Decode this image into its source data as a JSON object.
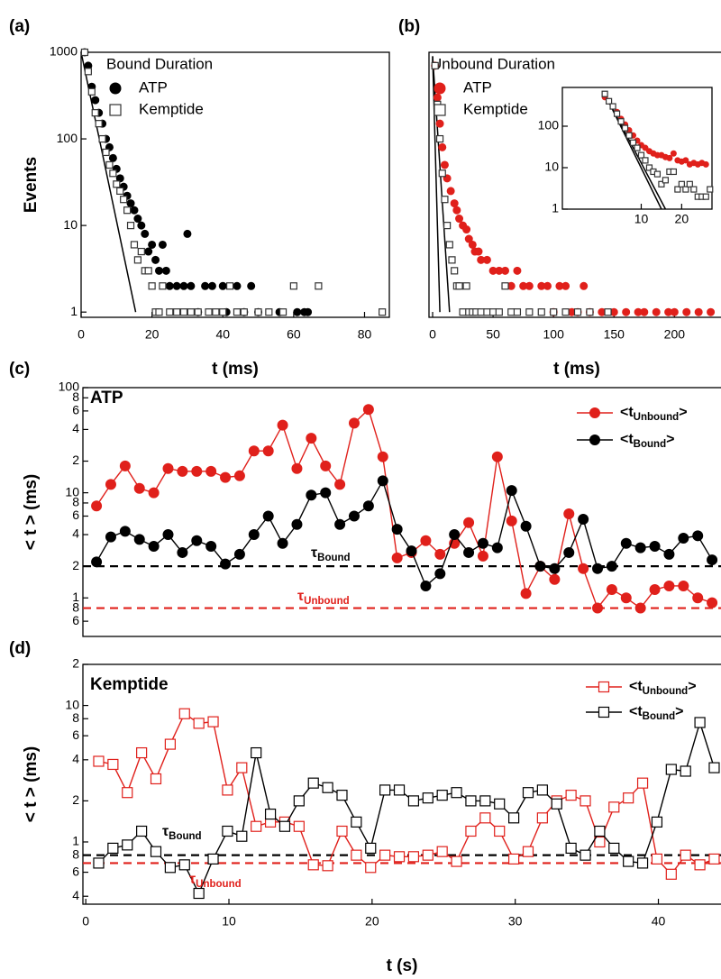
{
  "chart_data": [
    {
      "type": "scatter",
      "panel_label": "(a)",
      "x_label": "t (ms)",
      "y_label": "Events",
      "legend_title": "Bound Duration",
      "log_y": true,
      "xlim": [
        0,
        87
      ],
      "ylim": [
        0.87,
        1000
      ],
      "xticks": [
        0,
        20,
        40,
        60,
        80
      ],
      "yticks": [
        1,
        10,
        100,
        1000
      ],
      "fit_lines": [
        {
          "x": [
            0,
            15.4
          ],
          "y": [
            1000,
            1
          ]
        }
      ],
      "series": [
        {
          "name": "ATP",
          "color": "#000000",
          "marker": "circle",
          "filled": true,
          "x": [
            1,
            2,
            3,
            4,
            5,
            6,
            7,
            8,
            9,
            10,
            11,
            12,
            13,
            14,
            15,
            16,
            17,
            18,
            19,
            20,
            21,
            22,
            23,
            24,
            25,
            27,
            29,
            30,
            31,
            33,
            35,
            37,
            40,
            41,
            44,
            46,
            48,
            50,
            56,
            61,
            63,
            64
          ],
          "values": [
            1000,
            700,
            400,
            280,
            200,
            150,
            100,
            80,
            60,
            45,
            35,
            28,
            22,
            18,
            15,
            12,
            10,
            8,
            5,
            6,
            4,
            3,
            6,
            3,
            2,
            2,
            2,
            8,
            2,
            1,
            2,
            2,
            2,
            1,
            2,
            1,
            2,
            1,
            1,
            1,
            1,
            1
          ]
        },
        {
          "name": "Kemptide",
          "color": "#333333",
          "marker": "square",
          "filled": false,
          "x": [
            1,
            2,
            3,
            4,
            5,
            6,
            7,
            8,
            9,
            10,
            11,
            12,
            13,
            14,
            15,
            16,
            17,
            18,
            19,
            20,
            21,
            22,
            23,
            25,
            27,
            29,
            31,
            33,
            36,
            38,
            40,
            42,
            44,
            46,
            50,
            53,
            57,
            60,
            67,
            85
          ],
          "values": [
            1000,
            600,
            350,
            200,
            150,
            100,
            70,
            50,
            40,
            30,
            25,
            20,
            15,
            10,
            6,
            4,
            5,
            3,
            3,
            2,
            1,
            1,
            2,
            1,
            1,
            1,
            1,
            1,
            1,
            1,
            1,
            2,
            1,
            1,
            1,
            1,
            1,
            2,
            2,
            1
          ]
        }
      ]
    },
    {
      "type": "scatter",
      "panel_label": "(b)",
      "x_label": "t (ms)",
      "legend_title": "Unbound Duration",
      "log_y": true,
      "xlim": [
        -3,
        240
      ],
      "ylim": [
        0.87,
        1000
      ],
      "xticks": [
        0,
        50,
        100,
        150,
        200
      ],
      "fit_lines": [
        {
          "x": [
            0,
            6
          ],
          "y": [
            900,
            1
          ]
        },
        {
          "x": [
            0,
            14
          ],
          "y": [
            900,
            1
          ]
        }
      ],
      "series": [
        {
          "name": "ATP",
          "color": "#e0201b",
          "marker": "circle",
          "filled": true,
          "x": [
            2,
            4,
            6,
            8,
            10,
            12,
            15,
            18,
            20,
            22,
            25,
            28,
            30,
            33,
            35,
            38,
            40,
            45,
            50,
            55,
            60,
            65,
            70,
            75,
            80,
            90,
            95,
            100,
            105,
            110,
            115,
            120,
            125,
            130,
            140,
            150,
            160,
            170,
            175,
            185,
            195,
            200,
            210,
            220,
            230
          ],
          "values": [
            700,
            300,
            150,
            80,
            50,
            35,
            25,
            18,
            15,
            12,
            10,
            9,
            7,
            6,
            5,
            5,
            4,
            4,
            3,
            3,
            3,
            2,
            3,
            2,
            2,
            2,
            2,
            1,
            2,
            2,
            1,
            1,
            2,
            1,
            1,
            1,
            1,
            1,
            1,
            1,
            1,
            1,
            1,
            1,
            1
          ]
        },
        {
          "name": "Kemptide",
          "color": "#333333",
          "marker": "square",
          "filled": false,
          "x": [
            2,
            4,
            6,
            8,
            10,
            12,
            14,
            16,
            18,
            20,
            22,
            25,
            28,
            30,
            33,
            36,
            40,
            45,
            50,
            55,
            60,
            65,
            70,
            80,
            90,
            100,
            110,
            120,
            130,
            145
          ],
          "values": [
            700,
            250,
            100,
            40,
            20,
            10,
            6,
            4,
            3,
            2,
            2,
            1,
            2,
            1,
            1,
            1,
            1,
            1,
            1,
            1,
            2,
            1,
            1,
            1,
            1,
            1,
            1,
            1,
            1,
            1
          ]
        }
      ]
    },
    {
      "type": "scatter",
      "log_y": true,
      "xlim": [
        -9.5,
        27.5
      ],
      "ylim": [
        1,
        860
      ],
      "xticks": [
        10,
        20
      ],
      "yticks": [
        1,
        10,
        100
      ],
      "fit_lines": [
        {
          "x": [
            1,
            15
          ],
          "y": [
            600,
            1
          ]
        },
        {
          "x": [
            1,
            16
          ],
          "y": [
            600,
            1
          ]
        }
      ],
      "series": [
        {
          "color": "#e0201b",
          "marker": "circle",
          "filled": true,
          "x": [
            1,
            2,
            3,
            4,
            5,
            6,
            7,
            8,
            9,
            10,
            11,
            12,
            13,
            14,
            15,
            16,
            17,
            18,
            19,
            20,
            21,
            22,
            23,
            24,
            25,
            26
          ],
          "values": [
            500,
            400,
            300,
            220,
            150,
            110,
            80,
            60,
            45,
            35,
            30,
            25,
            22,
            20,
            20,
            18,
            17,
            22,
            15,
            14,
            15,
            12,
            13,
            12,
            13,
            12
          ]
        },
        {
          "color": "#333333",
          "marker": "square",
          "filled": false,
          "x": [
            1,
            2,
            3,
            4,
            5,
            6,
            7,
            8,
            9,
            10,
            11,
            12,
            13,
            14,
            15,
            16,
            17,
            18,
            19,
            20,
            21,
            22,
            23,
            24,
            25,
            26,
            27
          ],
          "values": [
            600,
            400,
            300,
            200,
            130,
            90,
            60,
            40,
            30,
            20,
            15,
            10,
            8,
            7,
            4,
            5,
            8,
            8,
            3,
            4,
            3,
            4,
            3,
            2,
            2,
            2,
            3
          ]
        }
      ]
    },
    {
      "type": "line",
      "panel_label": "(c)",
      "annotation": "ATP",
      "y_label": "< t > (ms)",
      "log_y": true,
      "xlim": [
        -0.2,
        44.5
      ],
      "ylim": [
        0.43,
        100
      ],
      "yticks": [
        100,
        {
          "value": 80,
          "label": "8"
        },
        {
          "value": 60,
          "label": "6"
        },
        {
          "value": 40,
          "label": "4"
        },
        {
          "value": 20,
          "label": "2"
        },
        10,
        8,
        6,
        4,
        2,
        1,
        {
          "value": 0.8,
          "label": "8"
        },
        {
          "value": 0.6,
          "label": "6"
        }
      ],
      "hlines": [
        {
          "value": 2,
          "label": "τBound",
          "color": "#000000"
        },
        {
          "value": 0.8,
          "label": "τUnbound",
          "color": "#e0201b"
        }
      ],
      "series": [
        {
          "name": "<tUnbound>",
          "color": "#e0201b",
          "marker": "circle",
          "filled": true,
          "x": [
            0.75,
            1.75,
            2.75,
            3.75,
            4.75,
            5.75,
            6.75,
            7.75,
            8.75,
            9.75,
            10.75,
            11.75,
            12.75,
            13.75,
            14.75,
            15.75,
            16.75,
            17.75,
            18.75,
            19.75,
            20.75,
            21.75,
            22.75,
            23.75,
            24.75,
            25.75,
            26.75,
            27.75,
            28.75,
            29.75,
            30.75,
            31.75,
            32.75,
            33.75,
            34.75,
            35.75,
            36.75,
            37.75,
            38.75,
            39.75,
            40.75,
            41.75,
            42.75,
            43.75
          ],
          "values": [
            7.5,
            12,
            18,
            11,
            10,
            17,
            16,
            16,
            16,
            14,
            14.5,
            25,
            25,
            44,
            17,
            33,
            18,
            12,
            46,
            62,
            22,
            2.4,
            2.7,
            3.5,
            2.6,
            3.3,
            5.2,
            2.5,
            22,
            5.4,
            1.1,
            2,
            1.5,
            6.3,
            1.9,
            0.8,
            1.2,
            1,
            0.8,
            1.2,
            1.3,
            1.3,
            1,
            0.9
          ]
        },
        {
          "name": "<tBound>",
          "color": "#000000",
          "marker": "circle",
          "filled": true,
          "x": [
            0.75,
            1.75,
            2.75,
            3.75,
            4.75,
            5.75,
            6.75,
            7.75,
            8.75,
            9.75,
            10.75,
            11.75,
            12.75,
            13.75,
            14.75,
            15.75,
            16.75,
            17.75,
            18.75,
            19.75,
            20.75,
            21.75,
            22.75,
            23.75,
            24.75,
            25.75,
            26.75,
            27.75,
            28.75,
            29.75,
            30.75,
            31.75,
            32.75,
            33.75,
            34.75,
            35.75,
            36.75,
            37.75,
            38.75,
            39.75,
            40.75,
            41.75,
            42.75,
            43.75
          ],
          "values": [
            2.2,
            3.8,
            4.3,
            3.6,
            3.1,
            4,
            2.7,
            3.5,
            3.1,
            2.1,
            2.6,
            4,
            6,
            3.3,
            5,
            9.5,
            10,
            5,
            6,
            7.5,
            13,
            4.5,
            2.8,
            1.3,
            1.7,
            4,
            2.7,
            3.3,
            3,
            10.5,
            4.8,
            2,
            1.9,
            2.7,
            5.6,
            1.9,
            2,
            3.3,
            3,
            3.1,
            2.6,
            3.7,
            3.9,
            2.3
          ]
        }
      ]
    },
    {
      "type": "line",
      "panel_label": "(d)",
      "annotation": "Kemptide",
      "x_label": "t (s)",
      "y_label": "< t > (ms)",
      "log_y": true,
      "xlim": [
        -0.2,
        44.5
      ],
      "ylim": [
        0.35,
        20
      ],
      "xticks": [
        0,
        10,
        20,
        30,
        40
      ],
      "yticks": [
        {
          "value": 20,
          "label": "2"
        },
        10,
        8,
        6,
        4,
        2,
        1,
        {
          "value": 0.8,
          "label": "8"
        },
        {
          "value": 0.6,
          "label": "6"
        },
        {
          "value": 0.4,
          "label": "4"
        }
      ],
      "hlines": [
        {
          "value": 0.8,
          "label": "τBound",
          "color": "#000000"
        },
        {
          "value": 0.7,
          "label": "τUnbound",
          "color": "#e0201b"
        }
      ],
      "series": [
        {
          "name": "<tUnbound>",
          "color": "#e0201b",
          "marker": "square",
          "filled": false,
          "x": [
            0.9,
            1.9,
            2.9,
            3.9,
            4.9,
            5.9,
            6.9,
            7.9,
            8.9,
            9.9,
            10.9,
            11.9,
            12.9,
            13.9,
            14.9,
            15.9,
            16.9,
            17.9,
            18.9,
            19.9,
            20.9,
            21.9,
            22.9,
            23.9,
            24.9,
            25.9,
            26.9,
            27.9,
            28.9,
            29.9,
            30.9,
            31.9,
            32.9,
            33.9,
            34.9,
            35.9,
            36.9,
            37.9,
            38.9,
            39.9,
            40.9,
            41.9,
            42.9,
            43.9
          ],
          "values": [
            3.9,
            3.7,
            2.3,
            4.5,
            2.9,
            5.2,
            8.7,
            7.4,
            7.6,
            2.4,
            3.5,
            1.3,
            1.4,
            1.4,
            1.3,
            0.68,
            0.67,
            1.2,
            0.8,
            0.65,
            0.8,
            0.78,
            0.78,
            0.8,
            0.85,
            0.72,
            1.2,
            1.5,
            1.2,
            0.75,
            0.85,
            1.5,
            2,
            2.2,
            2,
            1,
            1.8,
            2.1,
            2.7,
            0.75,
            0.58,
            0.8,
            0.68,
            0.75
          ]
        },
        {
          "name": "<tBound>",
          "color": "#000000",
          "marker": "square",
          "filled": false,
          "x": [
            0.9,
            1.9,
            2.9,
            3.9,
            4.9,
            5.9,
            6.9,
            7.9,
            8.9,
            9.9,
            10.9,
            11.9,
            12.9,
            13.9,
            14.9,
            15.9,
            16.9,
            17.9,
            18.9,
            19.9,
            20.9,
            21.9,
            22.9,
            23.9,
            24.9,
            25.9,
            26.9,
            27.9,
            28.9,
            29.9,
            30.9,
            31.9,
            32.9,
            33.9,
            34.9,
            35.9,
            36.9,
            37.9,
            38.9,
            39.9,
            40.9,
            41.9,
            42.9,
            43.9
          ],
          "values": [
            0.7,
            0.9,
            0.95,
            1.2,
            0.85,
            0.65,
            0.68,
            0.42,
            0.75,
            1.2,
            1.1,
            4.5,
            1.6,
            1.3,
            2,
            2.7,
            2.5,
            2.2,
            1.4,
            0.9,
            2.4,
            2.4,
            2,
            2.1,
            2.2,
            2.3,
            2,
            2,
            1.9,
            1.5,
            2.3,
            2.4,
            1.9,
            0.9,
            0.8,
            1.2,
            0.9,
            0.72,
            0.7,
            1.4,
            3.4,
            3.3,
            7.5,
            3.5
          ]
        }
      ]
    }
  ]
}
